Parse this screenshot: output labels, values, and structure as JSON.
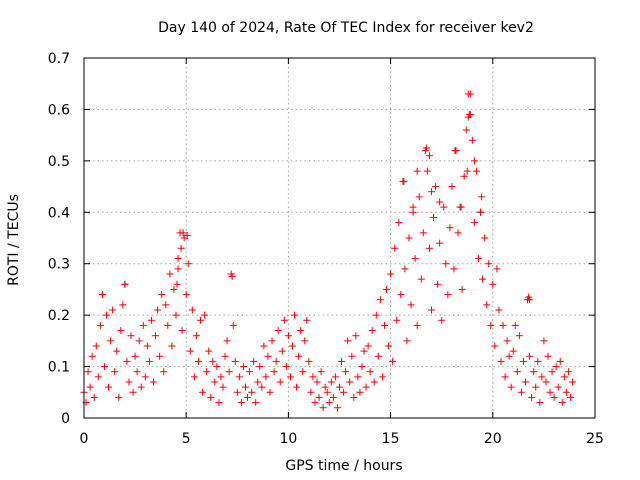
{
  "chart_data": {
    "type": "scatter",
    "title": "Day 140 of 2024, Rate Of TEC Index for receiver kev2",
    "xlabel": "GPS time / hours",
    "ylabel": "ROTI / TECUs",
    "xlim": [
      0,
      25
    ],
    "ylim": [
      0,
      0.7
    ],
    "xticks": [
      0,
      5,
      10,
      15,
      20,
      25
    ],
    "yticks": [
      0,
      0.1,
      0.2,
      0.3,
      0.4,
      0.5,
      0.6,
      0.7
    ],
    "xtick_labels": [
      "0",
      "5",
      "10",
      "15",
      "20",
      "25"
    ],
    "ytick_labels": [
      "0",
      "0.1",
      "0.2",
      "0.3",
      "0.4",
      "0.5",
      "0.6",
      "0.7"
    ],
    "grid": true,
    "marker": "+",
    "color": "#ff0000",
    "series": [
      {
        "name": "ROTI",
        "points": [
          [
            0.0,
            0.05
          ],
          [
            0.1,
            0.03
          ],
          [
            0.2,
            0.09
          ],
          [
            0.3,
            0.06
          ],
          [
            0.4,
            0.12
          ],
          [
            0.5,
            0.04
          ],
          [
            0.6,
            0.14
          ],
          [
            0.7,
            0.08
          ],
          [
            0.8,
            0.18
          ],
          [
            0.9,
            0.24
          ],
          [
            1.0,
            0.1
          ],
          [
            1.1,
            0.2
          ],
          [
            1.2,
            0.06
          ],
          [
            1.3,
            0.15
          ],
          [
            1.4,
            0.21
          ],
          [
            1.5,
            0.09
          ],
          [
            1.6,
            0.13
          ],
          [
            1.7,
            0.04
          ],
          [
            1.8,
            0.17
          ],
          [
            1.9,
            0.22
          ],
          [
            2.0,
            0.26
          ],
          [
            2.1,
            0.11
          ],
          [
            2.2,
            0.07
          ],
          [
            2.3,
            0.16
          ],
          [
            2.4,
            0.05
          ],
          [
            2.5,
            0.12
          ],
          [
            2.6,
            0.09
          ],
          [
            2.7,
            0.15
          ],
          [
            2.8,
            0.06
          ],
          [
            2.9,
            0.18
          ],
          [
            3.0,
            0.08
          ],
          [
            3.1,
            0.14
          ],
          [
            3.2,
            0.11
          ],
          [
            3.3,
            0.19
          ],
          [
            3.4,
            0.07
          ],
          [
            3.5,
            0.16
          ],
          [
            3.6,
            0.21
          ],
          [
            3.7,
            0.12
          ],
          [
            3.8,
            0.24
          ],
          [
            3.9,
            0.09
          ],
          [
            4.0,
            0.22
          ],
          [
            4.1,
            0.18
          ],
          [
            4.2,
            0.28
          ],
          [
            4.3,
            0.14
          ],
          [
            4.4,
            0.25
          ],
          [
            4.5,
            0.2
          ],
          [
            4.6,
            0.31
          ],
          [
            4.7,
            0.36
          ],
          [
            4.8,
            0.17
          ],
          [
            4.9,
            0.35
          ],
          [
            5.0,
            0.24
          ],
          [
            5.1,
            0.3
          ],
          [
            5.2,
            0.13
          ],
          [
            5.3,
            0.21
          ],
          [
            5.4,
            0.08
          ],
          [
            5.5,
            0.16
          ],
          [
            5.6,
            0.11
          ],
          [
            5.7,
            0.19
          ],
          [
            5.8,
            0.05
          ],
          [
            5.9,
            0.2
          ],
          [
            6.0,
            0.09
          ],
          [
            6.1,
            0.13
          ],
          [
            6.2,
            0.04
          ],
          [
            6.3,
            0.11
          ],
          [
            6.4,
            0.07
          ],
          [
            6.5,
            0.1
          ],
          [
            6.6,
            0.03
          ],
          [
            6.7,
            0.08
          ],
          [
            6.8,
            0.06
          ],
          [
            6.9,
            0.12
          ],
          [
            7.0,
            0.15
          ],
          [
            7.1,
            0.09
          ],
          [
            7.2,
            0.28
          ],
          [
            7.3,
            0.18
          ],
          [
            7.4,
            0.11
          ],
          [
            7.5,
            0.05
          ],
          [
            7.6,
            0.08
          ],
          [
            7.7,
            0.03
          ],
          [
            7.8,
            0.1
          ],
          [
            7.9,
            0.06
          ],
          [
            8.0,
            0.04
          ],
          [
            8.1,
            0.09
          ],
          [
            8.2,
            0.05
          ],
          [
            8.3,
            0.11
          ],
          [
            8.4,
            0.03
          ],
          [
            8.5,
            0.07
          ],
          [
            8.6,
            0.1
          ],
          [
            8.7,
            0.06
          ],
          [
            8.8,
            0.14
          ],
          [
            8.9,
            0.08
          ],
          [
            9.0,
            0.12
          ],
          [
            9.1,
            0.05
          ],
          [
            9.2,
            0.15
          ],
          [
            9.3,
            0.09
          ],
          [
            9.4,
            0.11
          ],
          [
            9.5,
            0.17
          ],
          [
            9.6,
            0.07
          ],
          [
            9.7,
            0.13
          ],
          [
            9.8,
            0.19
          ],
          [
            9.9,
            0.1
          ],
          [
            10.0,
            0.16
          ],
          [
            10.1,
            0.08
          ],
          [
            10.2,
            0.14
          ],
          [
            10.3,
            0.2
          ],
          [
            10.4,
            0.06
          ],
          [
            10.5,
            0.12
          ],
          [
            10.6,
            0.17
          ],
          [
            10.7,
            0.09
          ],
          [
            10.8,
            0.15
          ],
          [
            10.9,
            0.19
          ],
          [
            11.0,
            0.11
          ],
          [
            11.1,
            0.05
          ],
          [
            11.2,
            0.08
          ],
          [
            11.3,
            0.03
          ],
          [
            11.4,
            0.07
          ],
          [
            11.5,
            0.04
          ],
          [
            11.6,
            0.09
          ],
          [
            11.7,
            0.02
          ],
          [
            11.8,
            0.06
          ],
          [
            11.9,
            0.05
          ],
          [
            12.0,
            0.03
          ],
          [
            12.1,
            0.07
          ],
          [
            12.2,
            0.04
          ],
          [
            12.3,
            0.08
          ],
          [
            12.4,
            0.02
          ],
          [
            12.5,
            0.06
          ],
          [
            12.6,
            0.11
          ],
          [
            12.7,
            0.05
          ],
          [
            12.8,
            0.09
          ],
          [
            12.9,
            0.15
          ],
          [
            13.0,
            0.07
          ],
          [
            13.1,
            0.12
          ],
          [
            13.2,
            0.04
          ],
          [
            13.3,
            0.16
          ],
          [
            13.4,
            0.08
          ],
          [
            13.5,
            0.05
          ],
          [
            13.6,
            0.1
          ],
          [
            13.7,
            0.13
          ],
          [
            13.8,
            0.06
          ],
          [
            13.9,
            0.14
          ],
          [
            14.0,
            0.09
          ],
          [
            14.1,
            0.17
          ],
          [
            14.2,
            0.07
          ],
          [
            14.3,
            0.2
          ],
          [
            14.4,
            0.12
          ],
          [
            14.5,
            0.23
          ],
          [
            14.6,
            0.08
          ],
          [
            14.7,
            0.18
          ],
          [
            14.8,
            0.25
          ],
          [
            14.9,
            0.14
          ],
          [
            15.0,
            0.28
          ],
          [
            15.1,
            0.11
          ],
          [
            15.2,
            0.33
          ],
          [
            15.3,
            0.19
          ],
          [
            15.4,
            0.38
          ],
          [
            15.5,
            0.24
          ],
          [
            15.6,
            0.46
          ],
          [
            15.7,
            0.29
          ],
          [
            15.8,
            0.15
          ],
          [
            15.9,
            0.35
          ],
          [
            16.0,
            0.22
          ],
          [
            16.1,
            0.41
          ],
          [
            16.2,
            0.31
          ],
          [
            16.3,
            0.18
          ],
          [
            16.4,
            0.43
          ],
          [
            16.5,
            0.27
          ],
          [
            16.6,
            0.36
          ],
          [
            16.7,
            0.52
          ],
          [
            16.8,
            0.48
          ],
          [
            16.9,
            0.33
          ],
          [
            17.0,
            0.21
          ],
          [
            17.1,
            0.39
          ],
          [
            17.2,
            0.45
          ],
          [
            17.3,
            0.26
          ],
          [
            17.4,
            0.34
          ],
          [
            17.5,
            0.19
          ],
          [
            17.6,
            0.41
          ],
          [
            17.7,
            0.3
          ],
          [
            17.8,
            0.24
          ],
          [
            17.9,
            0.37
          ],
          [
            18.0,
            0.45
          ],
          [
            18.1,
            0.29
          ],
          [
            18.2,
            0.52
          ],
          [
            18.3,
            0.36
          ],
          [
            18.4,
            0.41
          ],
          [
            18.5,
            0.25
          ],
          [
            18.6,
            0.47
          ],
          [
            18.7,
            0.56
          ],
          [
            18.8,
            0.63
          ],
          [
            18.9,
            0.59
          ],
          [
            19.0,
            0.54
          ],
          [
            19.1,
            0.38
          ],
          [
            19.2,
            0.48
          ],
          [
            19.3,
            0.31
          ],
          [
            19.4,
            0.4
          ],
          [
            19.5,
            0.27
          ],
          [
            19.6,
            0.35
          ],
          [
            19.7,
            0.22
          ],
          [
            19.8,
            0.3
          ],
          [
            19.9,
            0.18
          ],
          [
            20.0,
            0.26
          ],
          [
            20.1,
            0.14
          ],
          [
            20.2,
            0.29
          ],
          [
            20.3,
            0.21
          ],
          [
            20.4,
            0.11
          ],
          [
            20.5,
            0.18
          ],
          [
            20.6,
            0.08
          ],
          [
            20.7,
            0.15
          ],
          [
            20.8,
            0.12
          ],
          [
            20.9,
            0.06
          ],
          [
            21.0,
            0.13
          ],
          [
            21.1,
            0.18
          ],
          [
            21.2,
            0.09
          ],
          [
            21.3,
            0.16
          ],
          [
            21.4,
            0.05
          ],
          [
            21.5,
            0.11
          ],
          [
            21.6,
            0.07
          ],
          [
            21.7,
            0.23
          ],
          [
            21.8,
            0.12
          ],
          [
            21.9,
            0.04
          ],
          [
            22.0,
            0.09
          ],
          [
            22.1,
            0.06
          ],
          [
            22.2,
            0.11
          ],
          [
            22.3,
            0.03
          ],
          [
            22.4,
            0.08
          ],
          [
            22.5,
            0.15
          ],
          [
            22.6,
            0.07
          ],
          [
            22.7,
            0.12
          ],
          [
            22.8,
            0.05
          ],
          [
            22.9,
            0.09
          ],
          [
            23.0,
            0.04
          ],
          [
            23.1,
            0.1
          ],
          [
            23.2,
            0.06
          ],
          [
            23.3,
            0.11
          ],
          [
            23.4,
            0.03
          ],
          [
            23.5,
            0.08
          ],
          [
            23.6,
            0.05
          ],
          [
            23.7,
            0.09
          ],
          [
            23.8,
            0.04
          ],
          [
            23.9,
            0.07
          ],
          [
            4.85,
            0.36
          ],
          [
            5.05,
            0.355
          ],
          [
            7.25,
            0.275
          ],
          [
            16.75,
            0.525
          ],
          [
            18.15,
            0.52
          ],
          [
            18.85,
            0.59
          ],
          [
            18.8,
            0.585
          ],
          [
            18.9,
            0.63
          ],
          [
            18.75,
            0.48
          ],
          [
            19.1,
            0.5
          ],
          [
            16.1,
            0.4
          ],
          [
            17.0,
            0.44
          ],
          [
            19.4,
            0.4
          ],
          [
            21.75,
            0.235
          ],
          [
            21.8,
            0.23
          ],
          [
            4.55,
            0.26
          ],
          [
            4.6,
            0.29
          ],
          [
            4.75,
            0.33
          ],
          [
            15.65,
            0.46
          ],
          [
            16.3,
            0.48
          ],
          [
            16.9,
            0.51
          ],
          [
            17.4,
            0.42
          ],
          [
            18.45,
            0.41
          ],
          [
            19.45,
            0.43
          ],
          [
            0.9,
            0.24
          ],
          [
            2.0,
            0.26
          ]
        ]
      }
    ]
  }
}
